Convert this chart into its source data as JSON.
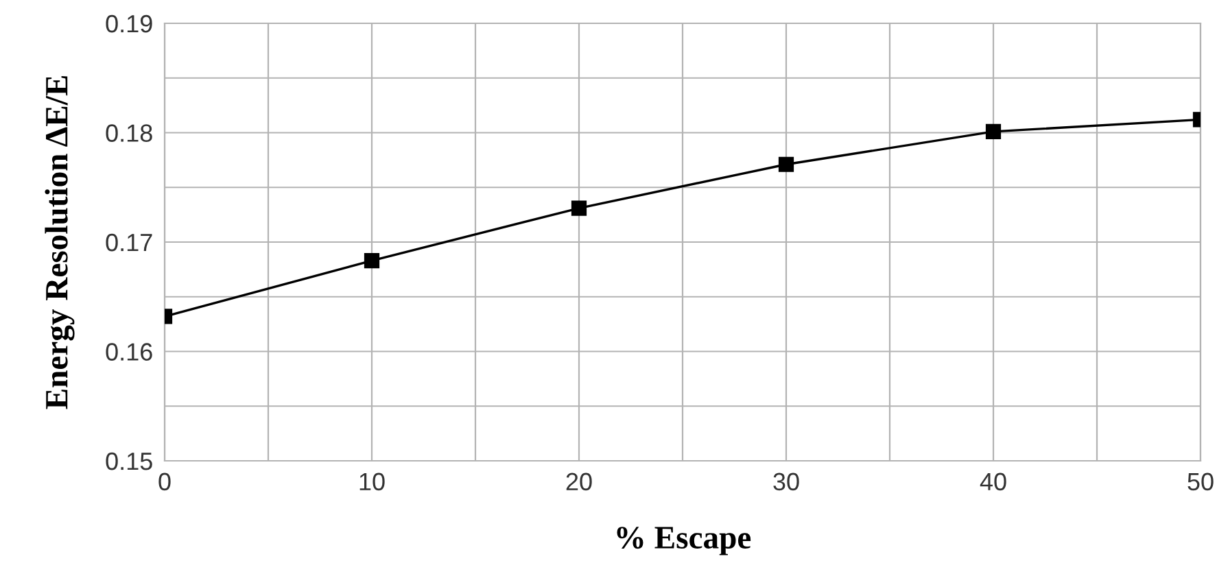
{
  "chart_data": {
    "type": "line",
    "xlabel": "% Escape",
    "ylabel": "Energy Resolution ΔE/E",
    "x": [
      0,
      10,
      20,
      30,
      40,
      50
    ],
    "series": [
      {
        "color": "#000000",
        "values": [
          0.1632,
          0.1683,
          0.1731,
          0.1771,
          0.1801,
          0.1812
        ]
      }
    ],
    "xlim": [
      0,
      50
    ],
    "xticks": [
      0,
      {
        "value": 5,
        "label": null
      },
      10,
      {
        "value": 15,
        "label": null
      },
      20,
      {
        "value": 25,
        "label": null
      },
      30,
      {
        "value": 35,
        "label": null
      },
      40,
      {
        "value": 45,
        "label": null
      },
      50
    ],
    "ylim": [
      0.15,
      0.19
    ],
    "yticks": [
      0.15,
      {
        "value": 0.155,
        "label": null
      },
      0.16,
      {
        "value": 0.165,
        "label": null
      },
      0.17,
      {
        "value": 0.175,
        "label": null
      },
      0.18,
      {
        "value": 0.185,
        "label": null
      },
      0.19
    ],
    "grid": true,
    "marker": "square",
    "line_style": "solid"
  }
}
